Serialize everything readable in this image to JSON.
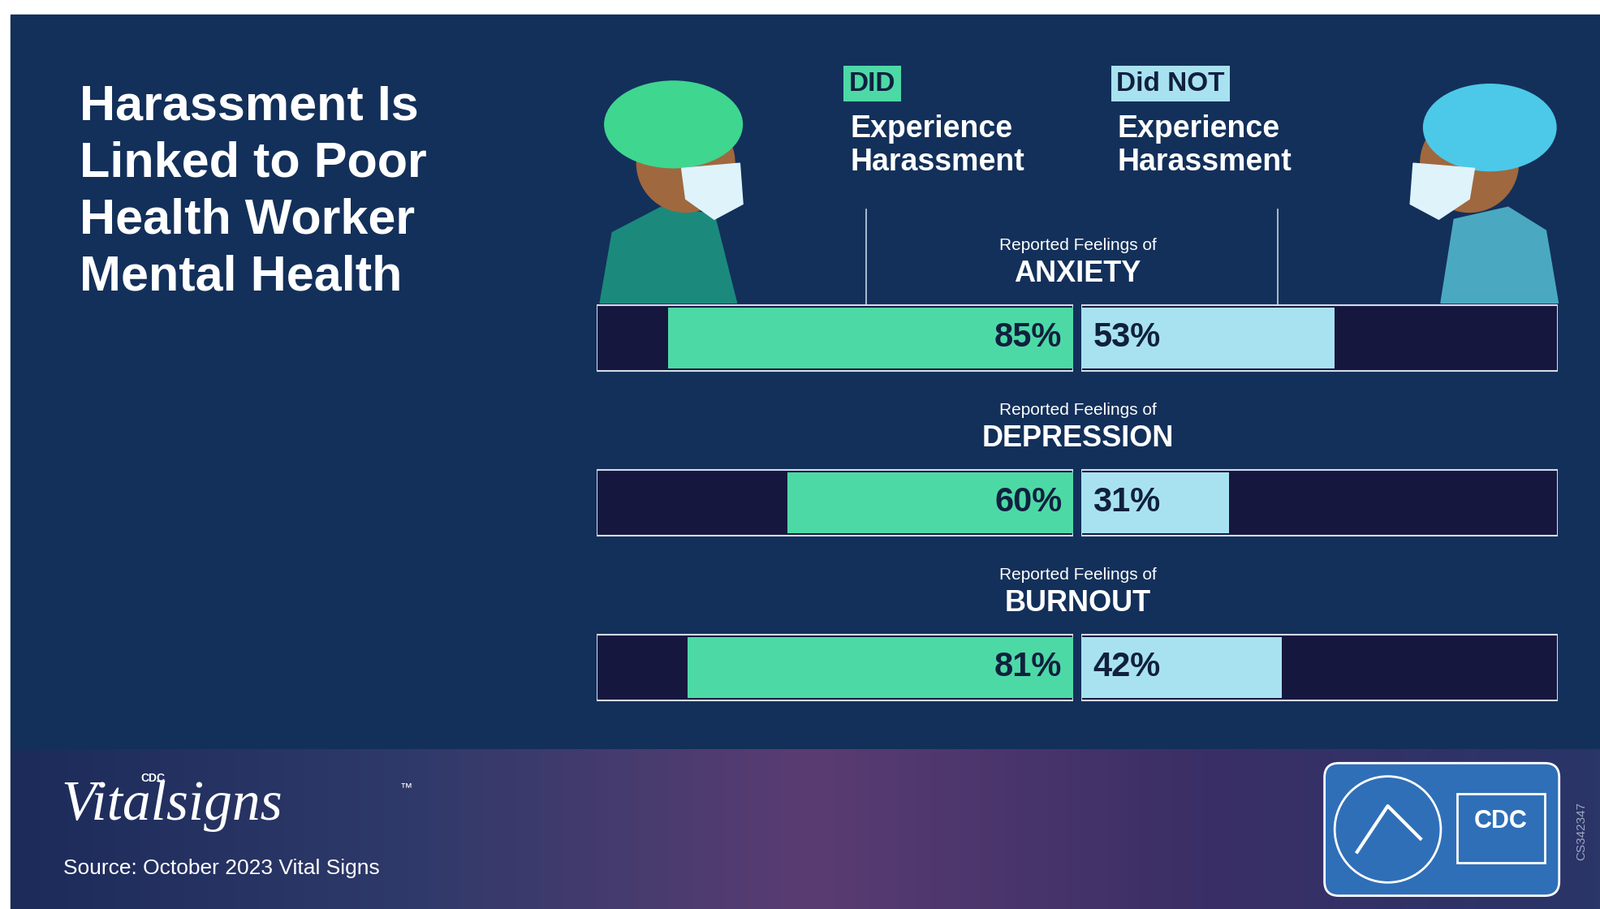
{
  "chart_data": {
    "type": "bar",
    "orientation": "horizontal",
    "title": "Harassment Is Linked to Poor Health Worker Mental Health",
    "category_caption": "Reported Feelings of",
    "categories": [
      "ANXIETY",
      "DEPRESSION",
      "BURNOUT"
    ],
    "series": [
      {
        "name": "DID",
        "detail": "Experience Harassment",
        "color": "#4dd9a6",
        "values": [
          85,
          60,
          81
        ],
        "value_labels": [
          "85%",
          "60%",
          "81%"
        ]
      },
      {
        "name": "Did NOT",
        "detail": "Experience Harassment",
        "color": "#a8e2f0",
        "values": [
          53,
          31,
          42
        ],
        "value_labels": [
          "53%",
          "31%",
          "42%"
        ]
      }
    ],
    "xlim": [
      0,
      100
    ],
    "data_labels": true,
    "tick_labels": false,
    "grid": false
  },
  "footer": {
    "brand_mark": "CDC",
    "brand": "Vitalsigns",
    "trademark": "™",
    "source": "Source: October 2023 Vital Signs",
    "logo": "CDC",
    "code": "CS342347"
  }
}
